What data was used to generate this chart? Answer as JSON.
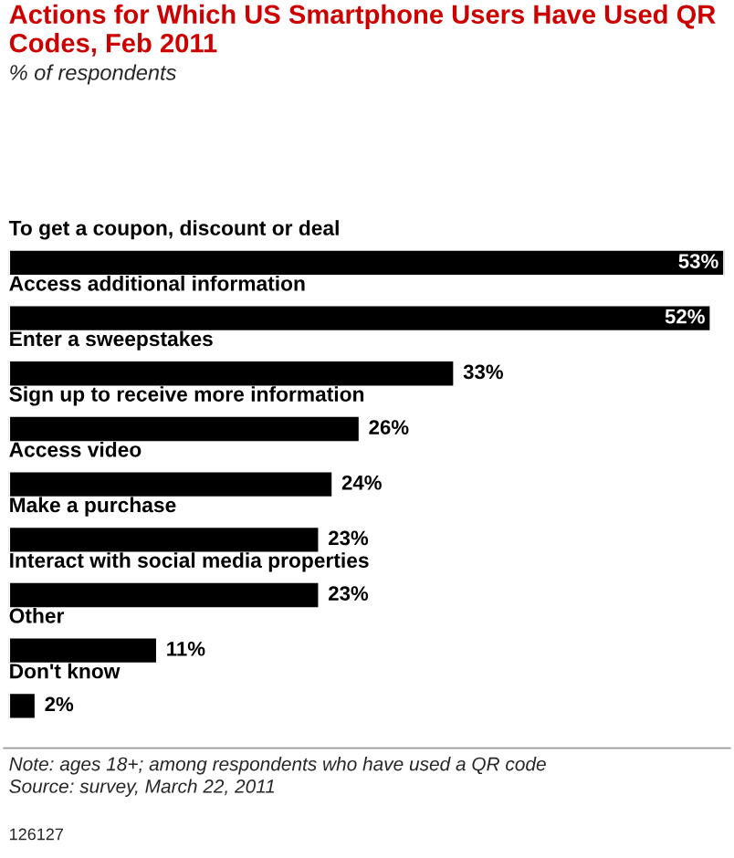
{
  "chart_data": {
    "type": "bar",
    "orientation": "horizontal",
    "title": "Actions for Which US Smartphone Users Have Used QR Codes, Feb 2011",
    "subtitle": "% of respondents",
    "categories": [
      "To get a coupon, discount or deal",
      "Access additional information",
      "Enter a sweepstakes",
      "Sign up to receive more information",
      "Access video",
      "Make a purchase",
      "Interact with social media properties",
      "Other",
      "Don't know"
    ],
    "values": [
      53,
      52,
      33,
      26,
      24,
      23,
      23,
      11,
      2
    ],
    "value_labels": [
      "53%",
      "52%",
      "33%",
      "26%",
      "24%",
      "23%",
      "23%",
      "11%",
      "2%"
    ],
    "color": "#000000",
    "tick_labels": false,
    "annotations": [
      "Note: ages 18+; among respondents who have used a QR code",
      "Source: survey, March 22, 2011",
      "126127"
    ]
  }
}
